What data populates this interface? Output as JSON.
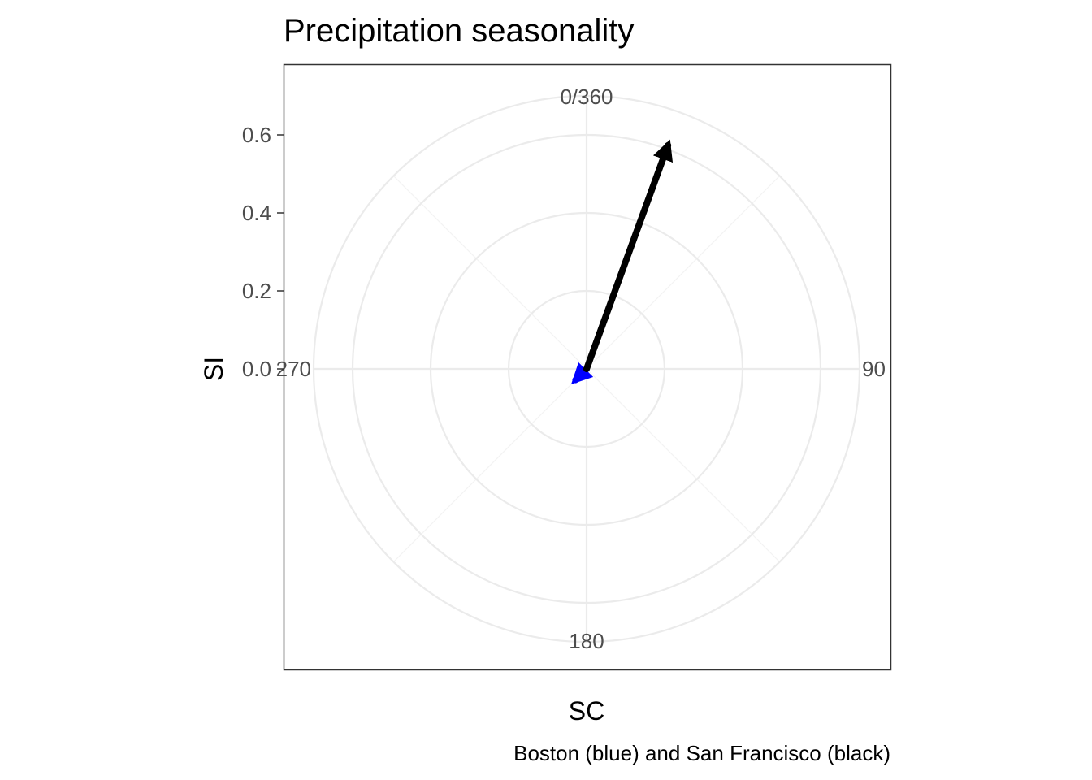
{
  "chart_data": {
    "type": "polar-arrow",
    "title": "Precipitation seasonality",
    "xlabel": "SC",
    "ylabel": "SI",
    "caption": "Boston (blue) and San Francisco (black)",
    "angle_unit": "degrees",
    "angle_ticks": [
      "0/360",
      "90",
      "180",
      "270"
    ],
    "angle_tick_values": [
      0,
      90,
      180,
      270
    ],
    "radial_ticks": [
      "0.0",
      "0.2",
      "0.4",
      "0.6"
    ],
    "radial_tick_values": [
      0.0,
      0.2,
      0.4,
      0.6
    ],
    "rlim": [
      0,
      0.7
    ],
    "grid": true,
    "series": [
      {
        "name": "Boston",
        "color": "#0000ff",
        "angle": 225,
        "magnitude": 0.04
      },
      {
        "name": "San Francisco",
        "color": "#000000",
        "angle": 20,
        "magnitude": 0.61
      }
    ]
  }
}
